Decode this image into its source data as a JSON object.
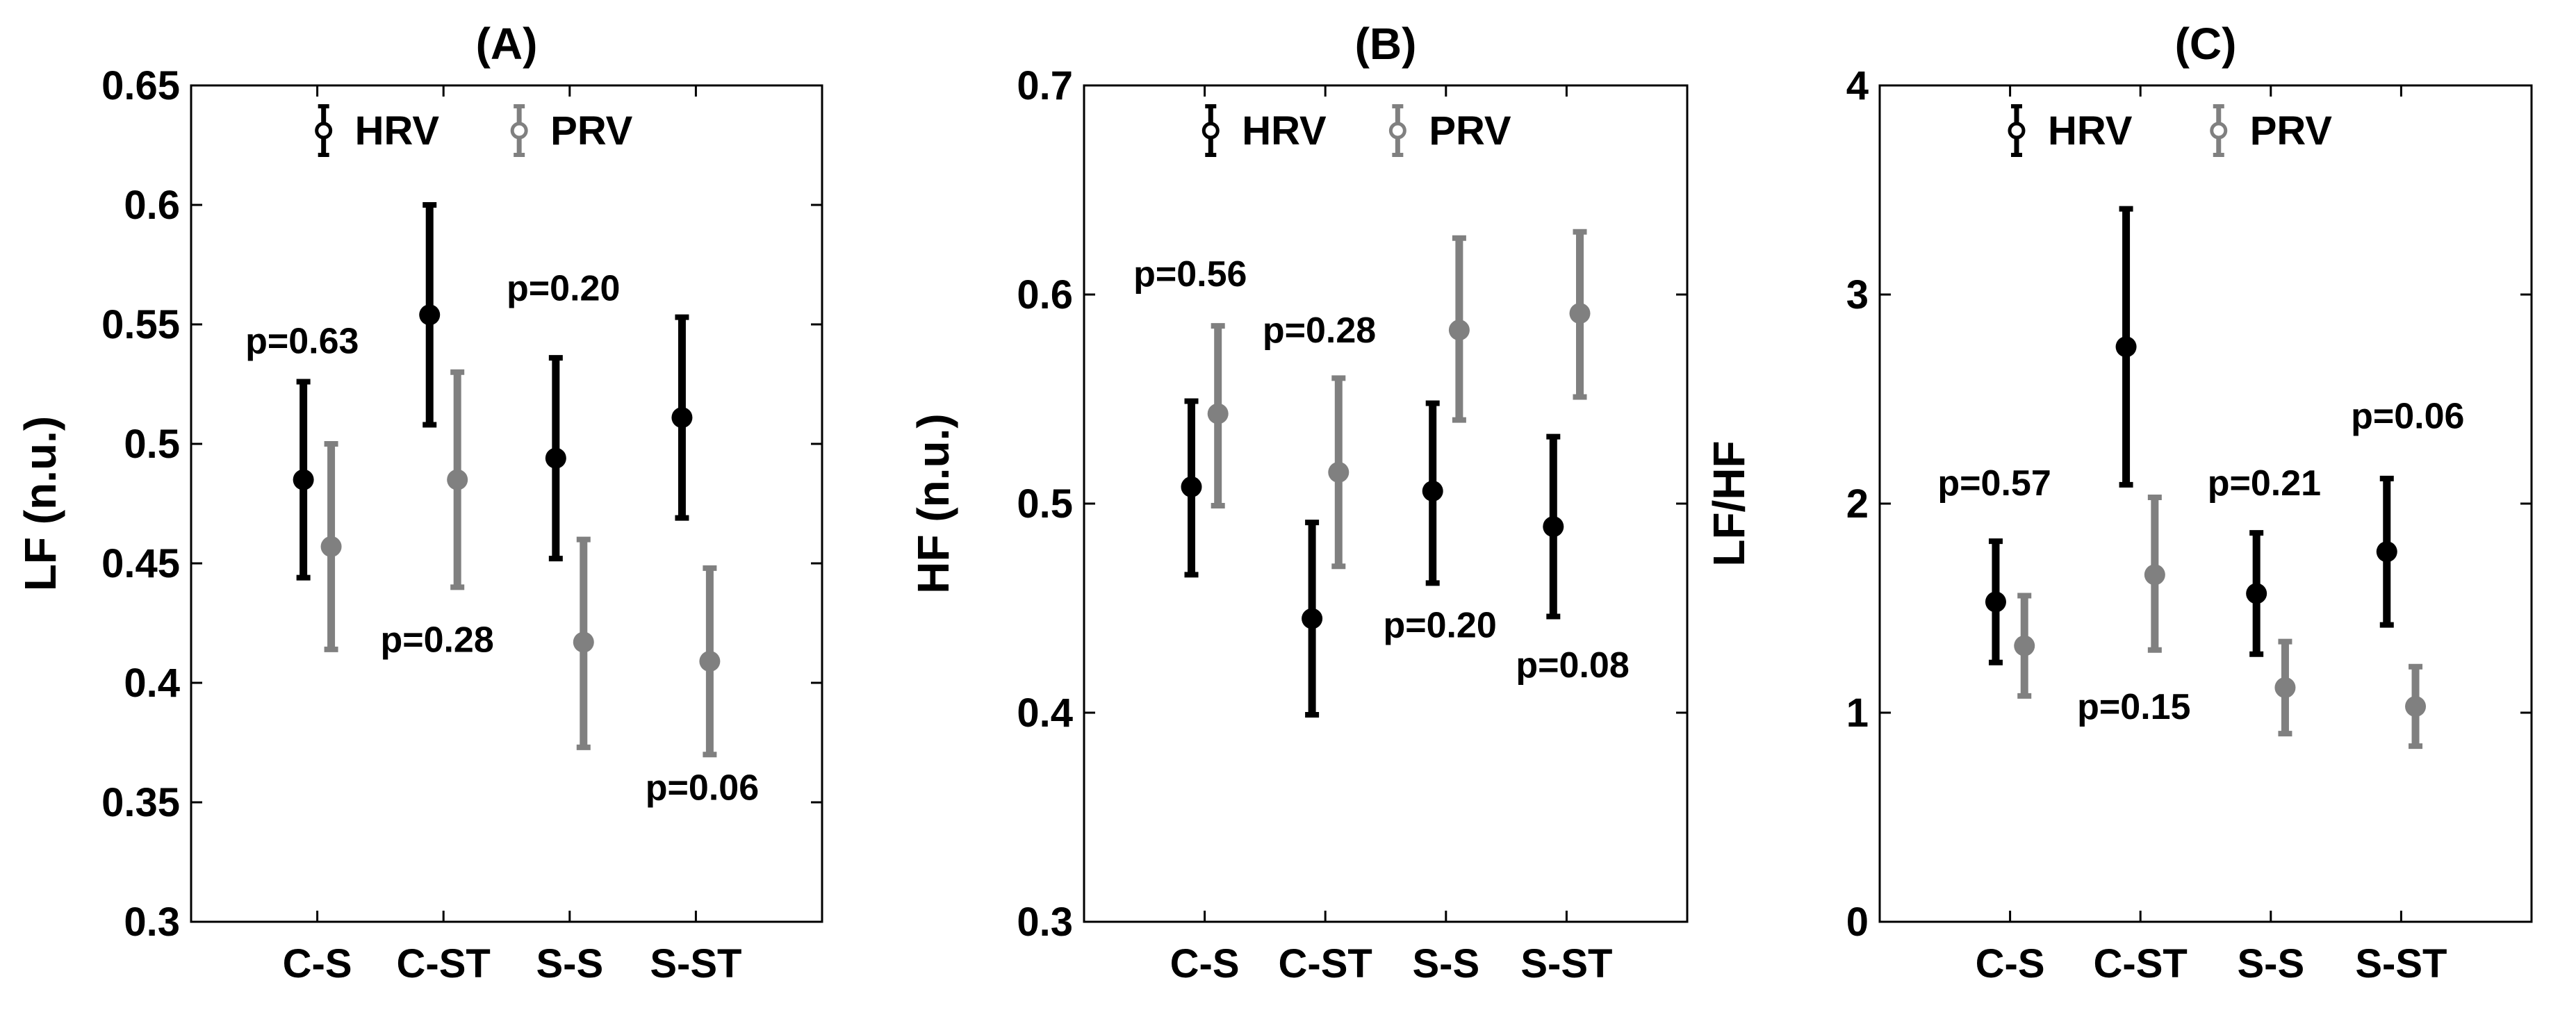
{
  "colors": {
    "hrv": "#000000",
    "prv": "#808080"
  },
  "chart_data": [
    {
      "type": "errorbar",
      "title": "(A)",
      "ylabel": "LF (n.u.)",
      "xlabel": "",
      "categories": [
        "C-S",
        "C-ST",
        "S-S",
        "S-ST"
      ],
      "ylim": [
        0.3,
        0.65
      ],
      "yticks": [
        0.3,
        0.35,
        0.4,
        0.45,
        0.5,
        0.55,
        0.6,
        0.65
      ],
      "ytick_labels": [
        "0.3",
        "0.35",
        "0.4",
        "0.45",
        "0.5",
        "0.55",
        "0.6",
        "0.65"
      ],
      "legend": [
        "HRV",
        "PRV"
      ],
      "legend_position": "top",
      "series": [
        {
          "name": "HRV",
          "mean": [
            0.485,
            0.554,
            0.494,
            0.511
          ],
          "lower": [
            0.444,
            0.508,
            0.452,
            0.469
          ],
          "upper": [
            0.526,
            0.6,
            0.536,
            0.553
          ]
        },
        {
          "name": "PRV",
          "mean": [
            0.457,
            0.485,
            0.417,
            0.409
          ],
          "lower": [
            0.414,
            0.44,
            0.373,
            0.37
          ],
          "upper": [
            0.5,
            0.53,
            0.46,
            0.448
          ]
        }
      ],
      "pvalues": [
        "p=0.63",
        "p=0.28",
        "p=0.20",
        "p=0.06"
      ],
      "pvalue_y": [
        0.538,
        0.413,
        0.56,
        0.351
      ]
    },
    {
      "type": "errorbar",
      "title": "(B)",
      "ylabel": "HF (n.u.)",
      "xlabel": "",
      "categories": [
        "C-S",
        "C-ST",
        "S-S",
        "S-ST"
      ],
      "ylim": [
        0.3,
        0.7
      ],
      "yticks": [
        0.3,
        0.4,
        0.5,
        0.6,
        0.7
      ],
      "ytick_labels": [
        "0.3",
        "0.4",
        "0.5",
        "0.6",
        "0.7"
      ],
      "legend": [
        "HRV",
        "PRV"
      ],
      "legend_position": "top",
      "series": [
        {
          "name": "HRV",
          "mean": [
            0.508,
            0.445,
            0.506,
            0.489
          ],
          "lower": [
            0.466,
            0.399,
            0.462,
            0.446
          ],
          "upper": [
            0.549,
            0.491,
            0.548,
            0.532
          ]
        },
        {
          "name": "PRV",
          "mean": [
            0.543,
            0.515,
            0.583,
            0.591
          ],
          "lower": [
            0.499,
            0.47,
            0.54,
            0.551
          ],
          "upper": [
            0.585,
            0.56,
            0.627,
            0.63
          ]
        }
      ],
      "pvalues": [
        "p=0.56",
        "p=0.28",
        "p=0.20",
        "p=0.08"
      ],
      "pvalue_y": [
        0.604,
        0.577,
        0.436,
        0.417
      ]
    },
    {
      "type": "errorbar",
      "title": "(C)",
      "ylabel": "LF/HF",
      "xlabel": "",
      "categories": [
        "C-S",
        "C-ST",
        "S-S",
        "S-ST"
      ],
      "ylim": [
        0,
        4
      ],
      "yticks": [
        0,
        1,
        2,
        3,
        4
      ],
      "ytick_labels": [
        "0",
        "1",
        "2",
        "3",
        "4"
      ],
      "legend": [
        "HRV",
        "PRV"
      ],
      "legend_position": "top",
      "series": [
        {
          "name": "HRV",
          "mean": [
            1.53,
            2.75,
            1.57,
            1.77
          ],
          "lower": [
            1.24,
            2.09,
            1.28,
            1.42
          ],
          "upper": [
            1.82,
            3.41,
            1.86,
            2.12
          ]
        },
        {
          "name": "PRV",
          "mean": [
            1.32,
            1.66,
            1.12,
            1.03
          ],
          "lower": [
            1.08,
            1.3,
            0.9,
            0.84
          ],
          "upper": [
            1.56,
            2.03,
            1.34,
            1.22
          ]
        }
      ],
      "pvalues": [
        "p=0.57",
        "p=0.15",
        "p=0.21",
        "p=0.06"
      ],
      "pvalue_y": [
        2.04,
        0.97,
        2.04,
        2.36
      ]
    }
  ]
}
